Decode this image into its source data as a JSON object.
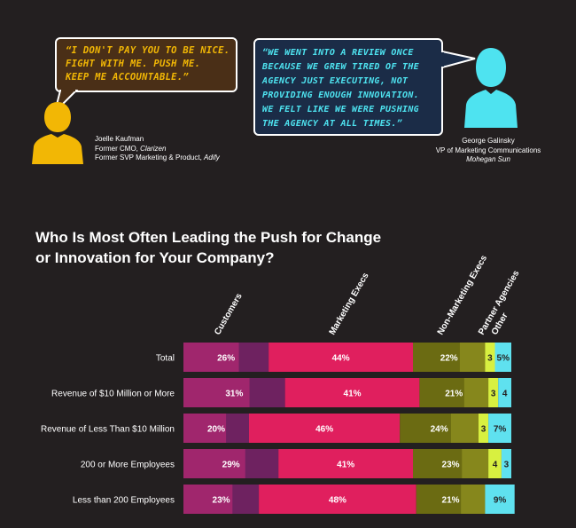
{
  "quotes": [
    {
      "lines": [
        "“I don't pay you to be nice.",
        "Fight with me. Push me.",
        "Keep me accountable.”"
      ],
      "person": {
        "name": "Joelle Kaufman",
        "title": "Former CMO, ",
        "company": "Clarizen",
        "title2": "Former SVP Marketing & Product, ",
        "company2": "Adify"
      },
      "color": "#f2b705"
    },
    {
      "lines": [
        "“We went into a review once",
        "because we grew tired of the",
        "agency just executing, not",
        "providing enough innovation.",
        "We felt like we were pushing",
        "the agency at all times.”"
      ],
      "person": {
        "name": "George Galinsky",
        "title": "VP of Marketing Communications",
        "company": "Mohegan Sun"
      },
      "color": "#4ee3f0"
    }
  ],
  "chart_data": {
    "type": "bar",
    "orientation": "horizontal",
    "stacked": true,
    "title_lines": [
      "Who Is Most Often Leading the Push for Change",
      "or Innovation for Your Company?"
    ],
    "categories": [
      "Total",
      "Revenue of $10 Million or More",
      "Revenue of Less Than $10 Million",
      "200 or More Employees",
      "Less than 200 Employees"
    ],
    "series": [
      {
        "name": "Customers",
        "values": [
          26,
          31,
          20,
          29,
          23
        ],
        "labels": [
          "26%",
          "31%",
          "20%",
          "29%",
          "23%"
        ],
        "colors": [
          "#a0266d",
          "#6e2260"
        ],
        "text_color": "#ffffff"
      },
      {
        "name": "Marketing Execs",
        "values": [
          44,
          41,
          46,
          41,
          48
        ],
        "labels": [
          "44%",
          "41%",
          "46%",
          "41%",
          "48%"
        ],
        "colors": [
          "#e01f5e"
        ],
        "text_color": "#ffffff"
      },
      {
        "name": "Non-Marketing Execs",
        "values": [
          22,
          21,
          24,
          23,
          21
        ],
        "labels": [
          "22%",
          "21%",
          "24%",
          "23%",
          "21%"
        ],
        "colors": [
          "#6b6b12",
          "#86871c"
        ],
        "text_color": "#ffffff"
      },
      {
        "name": "Partner Agencies",
        "values": [
          3,
          3,
          3,
          4,
          0
        ],
        "labels": [
          "3",
          "3",
          "3",
          "4",
          ""
        ],
        "colors": [
          "#d8f040"
        ],
        "text_color": "#231f20"
      },
      {
        "name": "Other",
        "values": [
          5,
          4,
          7,
          3,
          9
        ],
        "labels": [
          "5%",
          "4",
          "7%",
          "3",
          "9%"
        ],
        "colors": [
          "#5fe1ef"
        ],
        "text_color": "#231f20"
      }
    ],
    "xlim": [
      0,
      100
    ],
    "legend": "rotated labels above bars"
  }
}
